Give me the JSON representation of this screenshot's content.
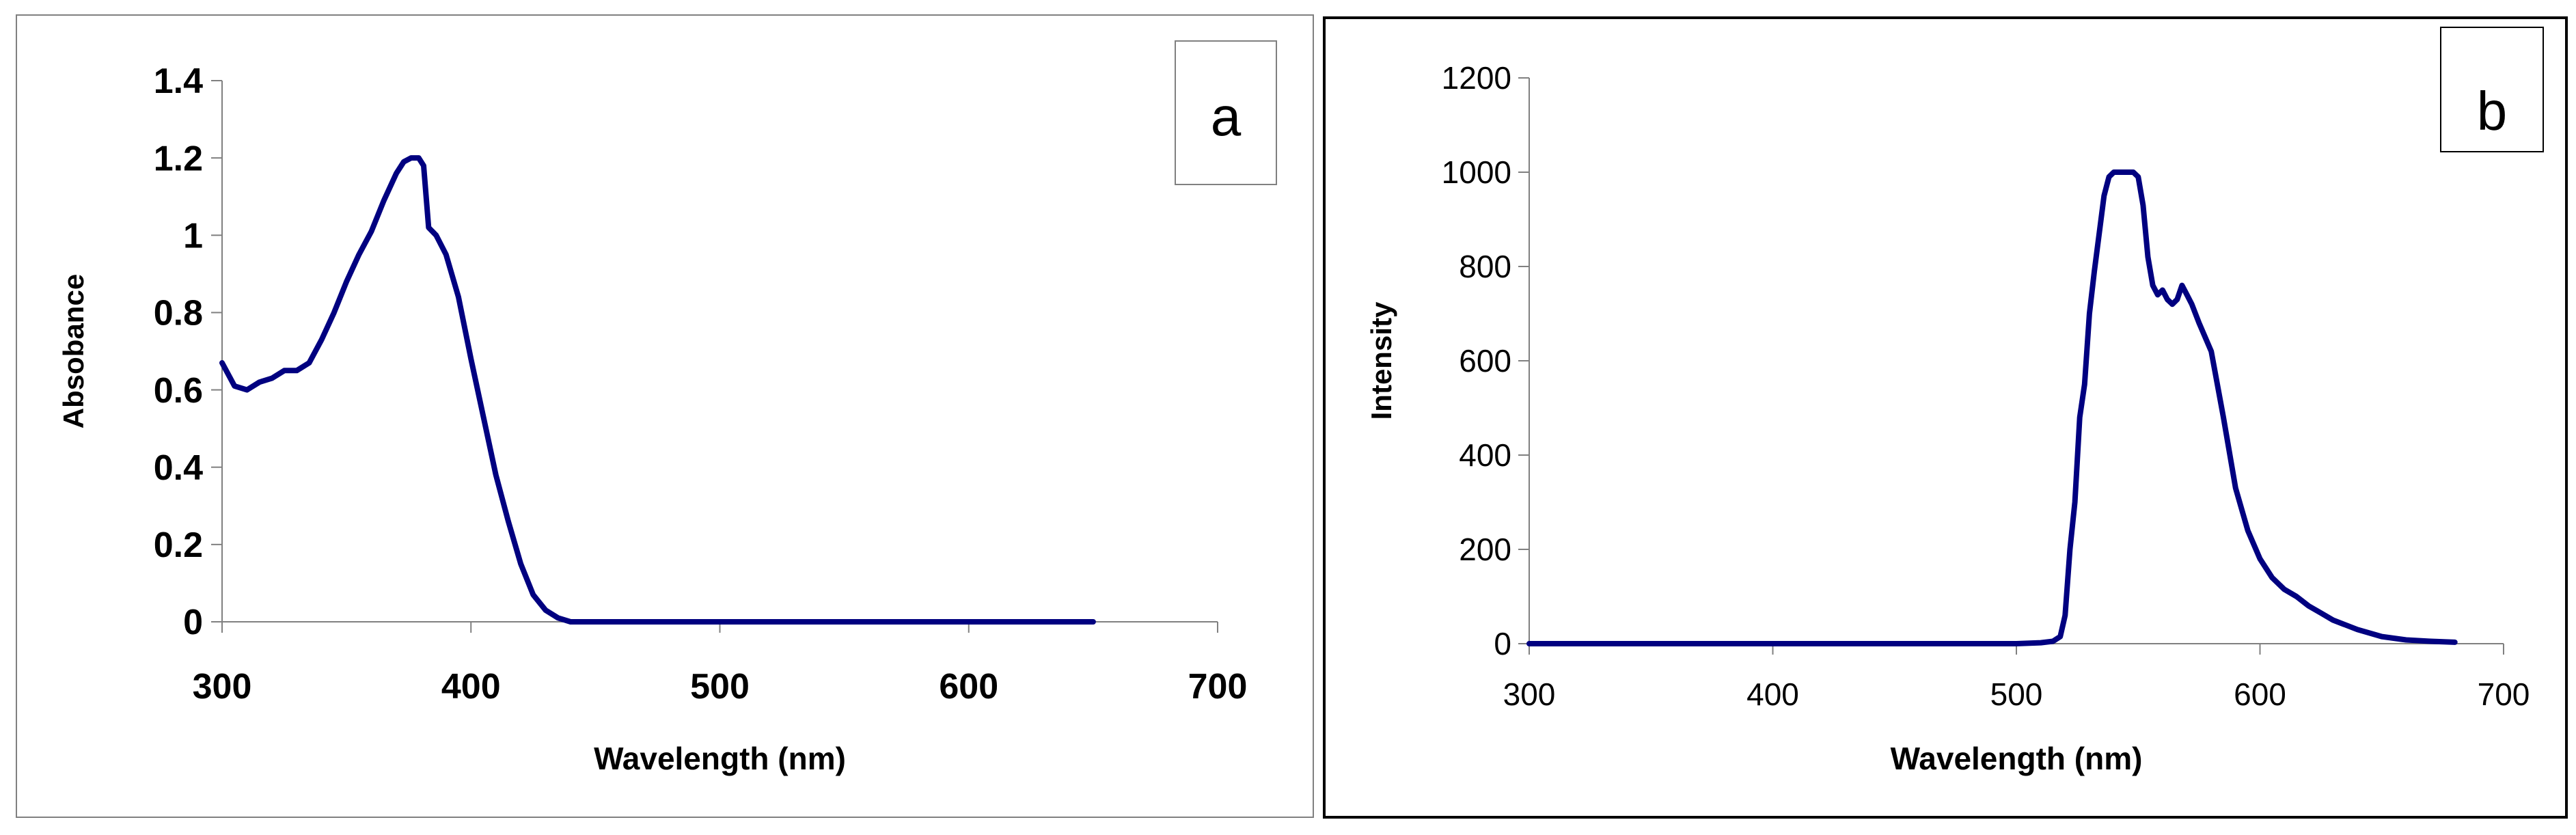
{
  "colors": {
    "line": "#000080",
    "axis": "#808080",
    "frame_a": "#808080",
    "frame_b": "#000000",
    "text": "#000000"
  },
  "chart_data": [
    {
      "panel": "a",
      "type": "line",
      "xlabel": "Wavelength (nm)",
      "ylabel": "Absobance",
      "xlim": [
        300,
        700
      ],
      "ylim": [
        0,
        1.4
      ],
      "xticks": [
        "300",
        "400",
        "500",
        "600",
        "700"
      ],
      "yticks": [
        "0",
        "0.2",
        "0.4",
        "0.6",
        "0.8",
        "1",
        "1.2",
        "1.4"
      ],
      "grid": false,
      "legend": "none",
      "series": [
        {
          "x": [
            300,
            305,
            310,
            315,
            320,
            325,
            330,
            335,
            340,
            345,
            350,
            355,
            360,
            365,
            370,
            373,
            376,
            379,
            381,
            383,
            386,
            390,
            395,
            400,
            405,
            410,
            415,
            420,
            425,
            430,
            435,
            440,
            445,
            450,
            500,
            550,
            600,
            650
          ],
          "y": [
            0.67,
            0.61,
            0.6,
            0.62,
            0.63,
            0.65,
            0.65,
            0.67,
            0.73,
            0.8,
            0.88,
            0.95,
            1.01,
            1.09,
            1.16,
            1.19,
            1.2,
            1.2,
            1.18,
            1.02,
            1.0,
            0.95,
            0.84,
            0.68,
            0.53,
            0.38,
            0.26,
            0.15,
            0.07,
            0.03,
            0.01,
            0.0,
            0.0,
            0.0,
            0.0,
            0.0,
            0.0,
            0.0
          ]
        }
      ]
    },
    {
      "panel": "b",
      "type": "line",
      "xlabel": "Wavelength (nm)",
      "ylabel": "Intensity",
      "xlim": [
        300,
        700
      ],
      "ylim": [
        0,
        1200
      ],
      "xticks": [
        "300",
        "400",
        "500",
        "600",
        "700"
      ],
      "yticks": [
        "0",
        "200",
        "400",
        "600",
        "800",
        "1000",
        "1200"
      ],
      "grid": false,
      "legend": "none",
      "series": [
        {
          "x": [
            300,
            350,
            400,
            450,
            500,
            510,
            515,
            518,
            520,
            522,
            524,
            526,
            528,
            530,
            532,
            534,
            536,
            538,
            540,
            542,
            545,
            548,
            550,
            552,
            554,
            556,
            558,
            560,
            562,
            564,
            566,
            568,
            570,
            572,
            575,
            580,
            585,
            590,
            595,
            600,
            605,
            610,
            615,
            620,
            625,
            630,
            640,
            650,
            660,
            670,
            680
          ],
          "y": [
            0,
            0,
            0,
            0,
            0,
            2,
            5,
            15,
            60,
            200,
            300,
            480,
            550,
            700,
            790,
            870,
            950,
            990,
            1000,
            1000,
            1000,
            1000,
            990,
            930,
            820,
            760,
            740,
            750,
            730,
            720,
            730,
            760,
            740,
            720,
            680,
            620,
            480,
            330,
            240,
            180,
            140,
            115,
            100,
            80,
            65,
            50,
            30,
            15,
            8,
            5,
            3
          ]
        }
      ]
    }
  ],
  "panel_labels": {
    "a": "a",
    "b": "b"
  }
}
